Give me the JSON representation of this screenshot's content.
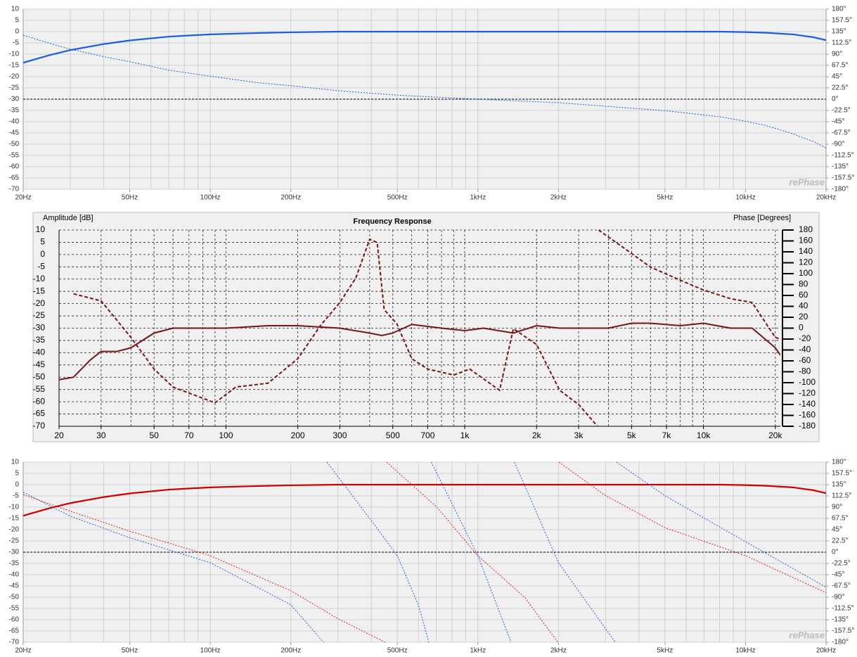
{
  "chart_data": [
    {
      "type": "line",
      "xscale": "log",
      "grid": true,
      "watermark": "rePhase",
      "xlim": [
        20,
        20000
      ],
      "xticks": [
        {
          "value": 20,
          "label": "20Hz"
        },
        {
          "value": 50,
          "label": "50Hz"
        },
        {
          "value": 100,
          "label": "100Hz"
        },
        {
          "value": 200,
          "label": "200Hz"
        },
        {
          "value": 500,
          "label": "500Hz"
        },
        {
          "value": 1000,
          "label": "1kHz"
        },
        {
          "value": 2000,
          "label": "2kHz"
        },
        {
          "value": 5000,
          "label": "5kHz"
        },
        {
          "value": 10000,
          "label": "10kHz"
        },
        {
          "value": 20000,
          "label": "20kHz"
        }
      ],
      "ylim": [
        -70,
        10
      ],
      "yticks": [
        10,
        5,
        0,
        -5,
        -10,
        -15,
        -20,
        -25,
        -30,
        -35,
        -40,
        -45,
        -50,
        -55,
        -60,
        -65,
        -70
      ],
      "y2lim": [
        -180,
        180
      ],
      "y2ticks": [
        {
          "value": 180,
          "label": "180°"
        },
        {
          "value": 157.5,
          "label": "157.5°"
        },
        {
          "value": 135,
          "label": "135°"
        },
        {
          "value": 112.5,
          "label": "112.5°"
        },
        {
          "value": 90,
          "label": "90°"
        },
        {
          "value": 67.5,
          "label": "67.5°"
        },
        {
          "value": 45,
          "label": "45°"
        },
        {
          "value": 22.5,
          "label": "22.5°"
        },
        {
          "value": 0,
          "label": "0°"
        },
        {
          "value": -22.5,
          "label": "-22.5°"
        },
        {
          "value": -45,
          "label": "-45°"
        },
        {
          "value": -67.5,
          "label": "-67.5°"
        },
        {
          "value": -90,
          "label": "-90°"
        },
        {
          "value": -112.5,
          "label": "-112.5°"
        },
        {
          "value": -135,
          "label": "-135°"
        },
        {
          "value": -157.5,
          "label": "-157.5°"
        },
        {
          "value": -180,
          "label": "-180°"
        }
      ],
      "x": [
        20,
        25,
        30,
        40,
        50,
        70,
        100,
        150,
        200,
        300,
        500,
        1000,
        2000,
        5000,
        8000,
        10000,
        12000,
        15000,
        18000,
        20000
      ],
      "series": [
        {
          "color": "#1a5fe0",
          "style": "solid",
          "values": [
            -13.8,
            -10.5,
            -8.2,
            -5.5,
            -3.9,
            -2.2,
            -1.2,
            -0.6,
            -0.3,
            0,
            0,
            0,
            0,
            0,
            0,
            -0.2,
            -0.5,
            -1.2,
            -2.5,
            -3.8
          ]
        },
        {
          "color": "#1a5fe0",
          "style": "dotted",
          "axis": "y2",
          "values": [
            128,
            112,
            100,
            85,
            75,
            58,
            46,
            33,
            27,
            17,
            8,
            0,
            -7,
            -23,
            -35,
            -44,
            -53,
            -69,
            -85,
            -98
          ]
        }
      ]
    },
    {
      "type": "line",
      "xscale": "log",
      "grid": true,
      "title": "Frequency Response",
      "y_label": "Amplitude [dB]",
      "y2_label": "Phase [Degrees]",
      "xlim": [
        20,
        21000
      ],
      "xticks": [
        20,
        30,
        50,
        70,
        100,
        200,
        300,
        500,
        700,
        {
          "value": 1000,
          "label": "1k"
        },
        {
          "value": 2000,
          "label": "2k"
        },
        {
          "value": 3000,
          "label": "3k"
        },
        {
          "value": 5000,
          "label": "5k"
        },
        {
          "value": 7000,
          "label": "7k"
        },
        {
          "value": 10000,
          "label": "10k"
        },
        {
          "value": 20000,
          "label": "20k"
        }
      ],
      "ylim": [
        -70,
        10
      ],
      "yticks": [
        10,
        5,
        0,
        -5,
        -10,
        -15,
        -20,
        -25,
        -30,
        -35,
        -40,
        -45,
        -50,
        -55,
        -60,
        -65,
        -70
      ],
      "y2lim": [
        -180,
        180
      ],
      "y2ticks": [
        180,
        160,
        140,
        120,
        100,
        80,
        60,
        40,
        20,
        0,
        -20,
        -40,
        -60,
        -80,
        -100,
        -120,
        -140,
        -160,
        -180
      ],
      "series": [
        {
          "color": "#7a1414",
          "style": "solid",
          "x": [
            20,
            23,
            27,
            30,
            35,
            40,
            50,
            60,
            100,
            150,
            200,
            300,
            400,
            450,
            500,
            600,
            800,
            1000,
            1200,
            1600,
            2000,
            2500,
            3000,
            4000,
            5000,
            6000,
            8000,
            10000,
            13000,
            16000,
            20000,
            21000
          ],
          "values": [
            -51,
            -50,
            -43,
            -39.5,
            -39.5,
            -38,
            -32,
            -30,
            -30,
            -29,
            -29,
            -30,
            -32,
            -33,
            -32,
            -28.5,
            -30,
            -31,
            -30,
            -32,
            -29,
            -30,
            -30,
            -30,
            -28,
            -28,
            -29,
            -28,
            -30,
            -30,
            -38,
            -41
          ]
        },
        {
          "color": "#7a1414",
          "style": "dashed",
          "axis": "y2",
          "x": [
            23,
            30,
            40,
            50,
            60,
            90,
            110,
            150,
            200,
            250,
            300,
            350,
            400,
            430,
            460,
            520,
            600,
            700,
            900,
            1050,
            1400,
            1600,
            2000,
            2500,
            3000,
            3600,
            3620,
            3640,
            5000,
            6000,
            8000,
            10000,
            13000,
            16000,
            20000,
            21000
          ],
          "values": [
            63,
            50,
            -17,
            -75,
            -108,
            -137,
            -108,
            -101,
            -56,
            6,
            47,
            92,
            163,
            157,
            34,
            8,
            -56,
            -75,
            -86,
            -75,
            -114,
            -1,
            -30,
            -114,
            -140,
            -180,
            null,
            180,
            137,
            112,
            88,
            70,
            54,
            47,
            -17,
            -20
          ]
        }
      ]
    },
    {
      "type": "line",
      "xscale": "log",
      "grid": true,
      "watermark": "rePhase",
      "xlim": [
        20,
        20000
      ],
      "xticks": [
        {
          "value": 20,
          "label": "20Hz"
        },
        {
          "value": 50,
          "label": "50Hz"
        },
        {
          "value": 100,
          "label": "100Hz"
        },
        {
          "value": 200,
          "label": "200Hz"
        },
        {
          "value": 500,
          "label": "500Hz"
        },
        {
          "value": 1000,
          "label": "1kHz"
        },
        {
          "value": 2000,
          "label": "2kHz"
        },
        {
          "value": 5000,
          "label": "5kHz"
        },
        {
          "value": 10000,
          "label": "10kHz"
        },
        {
          "value": 20000,
          "label": "20kHz"
        }
      ],
      "ylim": [
        -70,
        10
      ],
      "yticks": [
        10,
        5,
        0,
        -5,
        -10,
        -15,
        -20,
        -25,
        -30,
        -35,
        -40,
        -45,
        -50,
        -55,
        -60,
        -65,
        -70
      ],
      "y2lim": [
        -180,
        180
      ],
      "y2ticks": [
        {
          "value": 180,
          "label": "180°"
        },
        {
          "value": 157.5,
          "label": "157.5°"
        },
        {
          "value": 135,
          "label": "135°"
        },
        {
          "value": 112.5,
          "label": "112.5°"
        },
        {
          "value": 90,
          "label": "90°"
        },
        {
          "value": 67.5,
          "label": "67.5°"
        },
        {
          "value": 45,
          "label": "45°"
        },
        {
          "value": 22.5,
          "label": "22.5°"
        },
        {
          "value": 0,
          "label": "0°"
        },
        {
          "value": -22.5,
          "label": "-22.5°"
        },
        {
          "value": -45,
          "label": "-45°"
        },
        {
          "value": -67.5,
          "label": "-67.5°"
        },
        {
          "value": -90,
          "label": "-90°"
        },
        {
          "value": -112.5,
          "label": "-112.5°"
        },
        {
          "value": -135,
          "label": "-135°"
        },
        {
          "value": -157.5,
          "label": "-157.5°"
        },
        {
          "value": -180,
          "label": "-180°"
        }
      ],
      "series": [
        {
          "color": "#cc0000",
          "style": "solid",
          "x": [
            20,
            25,
            30,
            40,
            50,
            70,
            100,
            150,
            200,
            300,
            500,
            1000,
            2000,
            5000,
            8000,
            10000,
            12000,
            15000,
            18000,
            20000
          ],
          "values": [
            -13.8,
            -10.5,
            -8.2,
            -5.5,
            -3.9,
            -2.2,
            -1.2,
            -0.6,
            -0.3,
            0,
            0,
            0,
            0,
            0,
            0,
            -0.2,
            -0.5,
            -1.2,
            -2.5,
            -3.8
          ]
        },
        {
          "color": "#e02020",
          "style": "dotted",
          "axis": "y2",
          "x": [
            20,
            30,
            50,
            100,
            200,
            300,
            450,
            453,
            456,
            700,
            1000,
            1500,
            1990,
            2000,
            2010,
            3000,
            5000,
            10000,
            20000
          ],
          "values": [
            115,
            82,
            42,
            -7,
            -77,
            -133,
            -180,
            null,
            180,
            91,
            -7,
            -91,
            -180,
            null,
            180,
            113,
            49,
            -7,
            -81
          ]
        },
        {
          "color": "#2060e0",
          "style": "dotted",
          "axis": "y2",
          "x": [
            20,
            30,
            50,
            100,
            200,
            265,
            269,
            273,
            400,
            500,
            600,
            656,
            663,
            670,
            1000,
            1330,
            1350,
            1370,
            2000,
            3260,
            3280,
            3300,
            5000,
            10000,
            20000
          ],
          "values": [
            120,
            72,
            29,
            -21,
            -105,
            -180,
            null,
            180,
            63,
            -7,
            -106,
            -180,
            null,
            180,
            -7,
            -180,
            null,
            180,
            -21,
            -180,
            null,
            180,
            113,
            21,
            -70
          ]
        }
      ]
    }
  ]
}
